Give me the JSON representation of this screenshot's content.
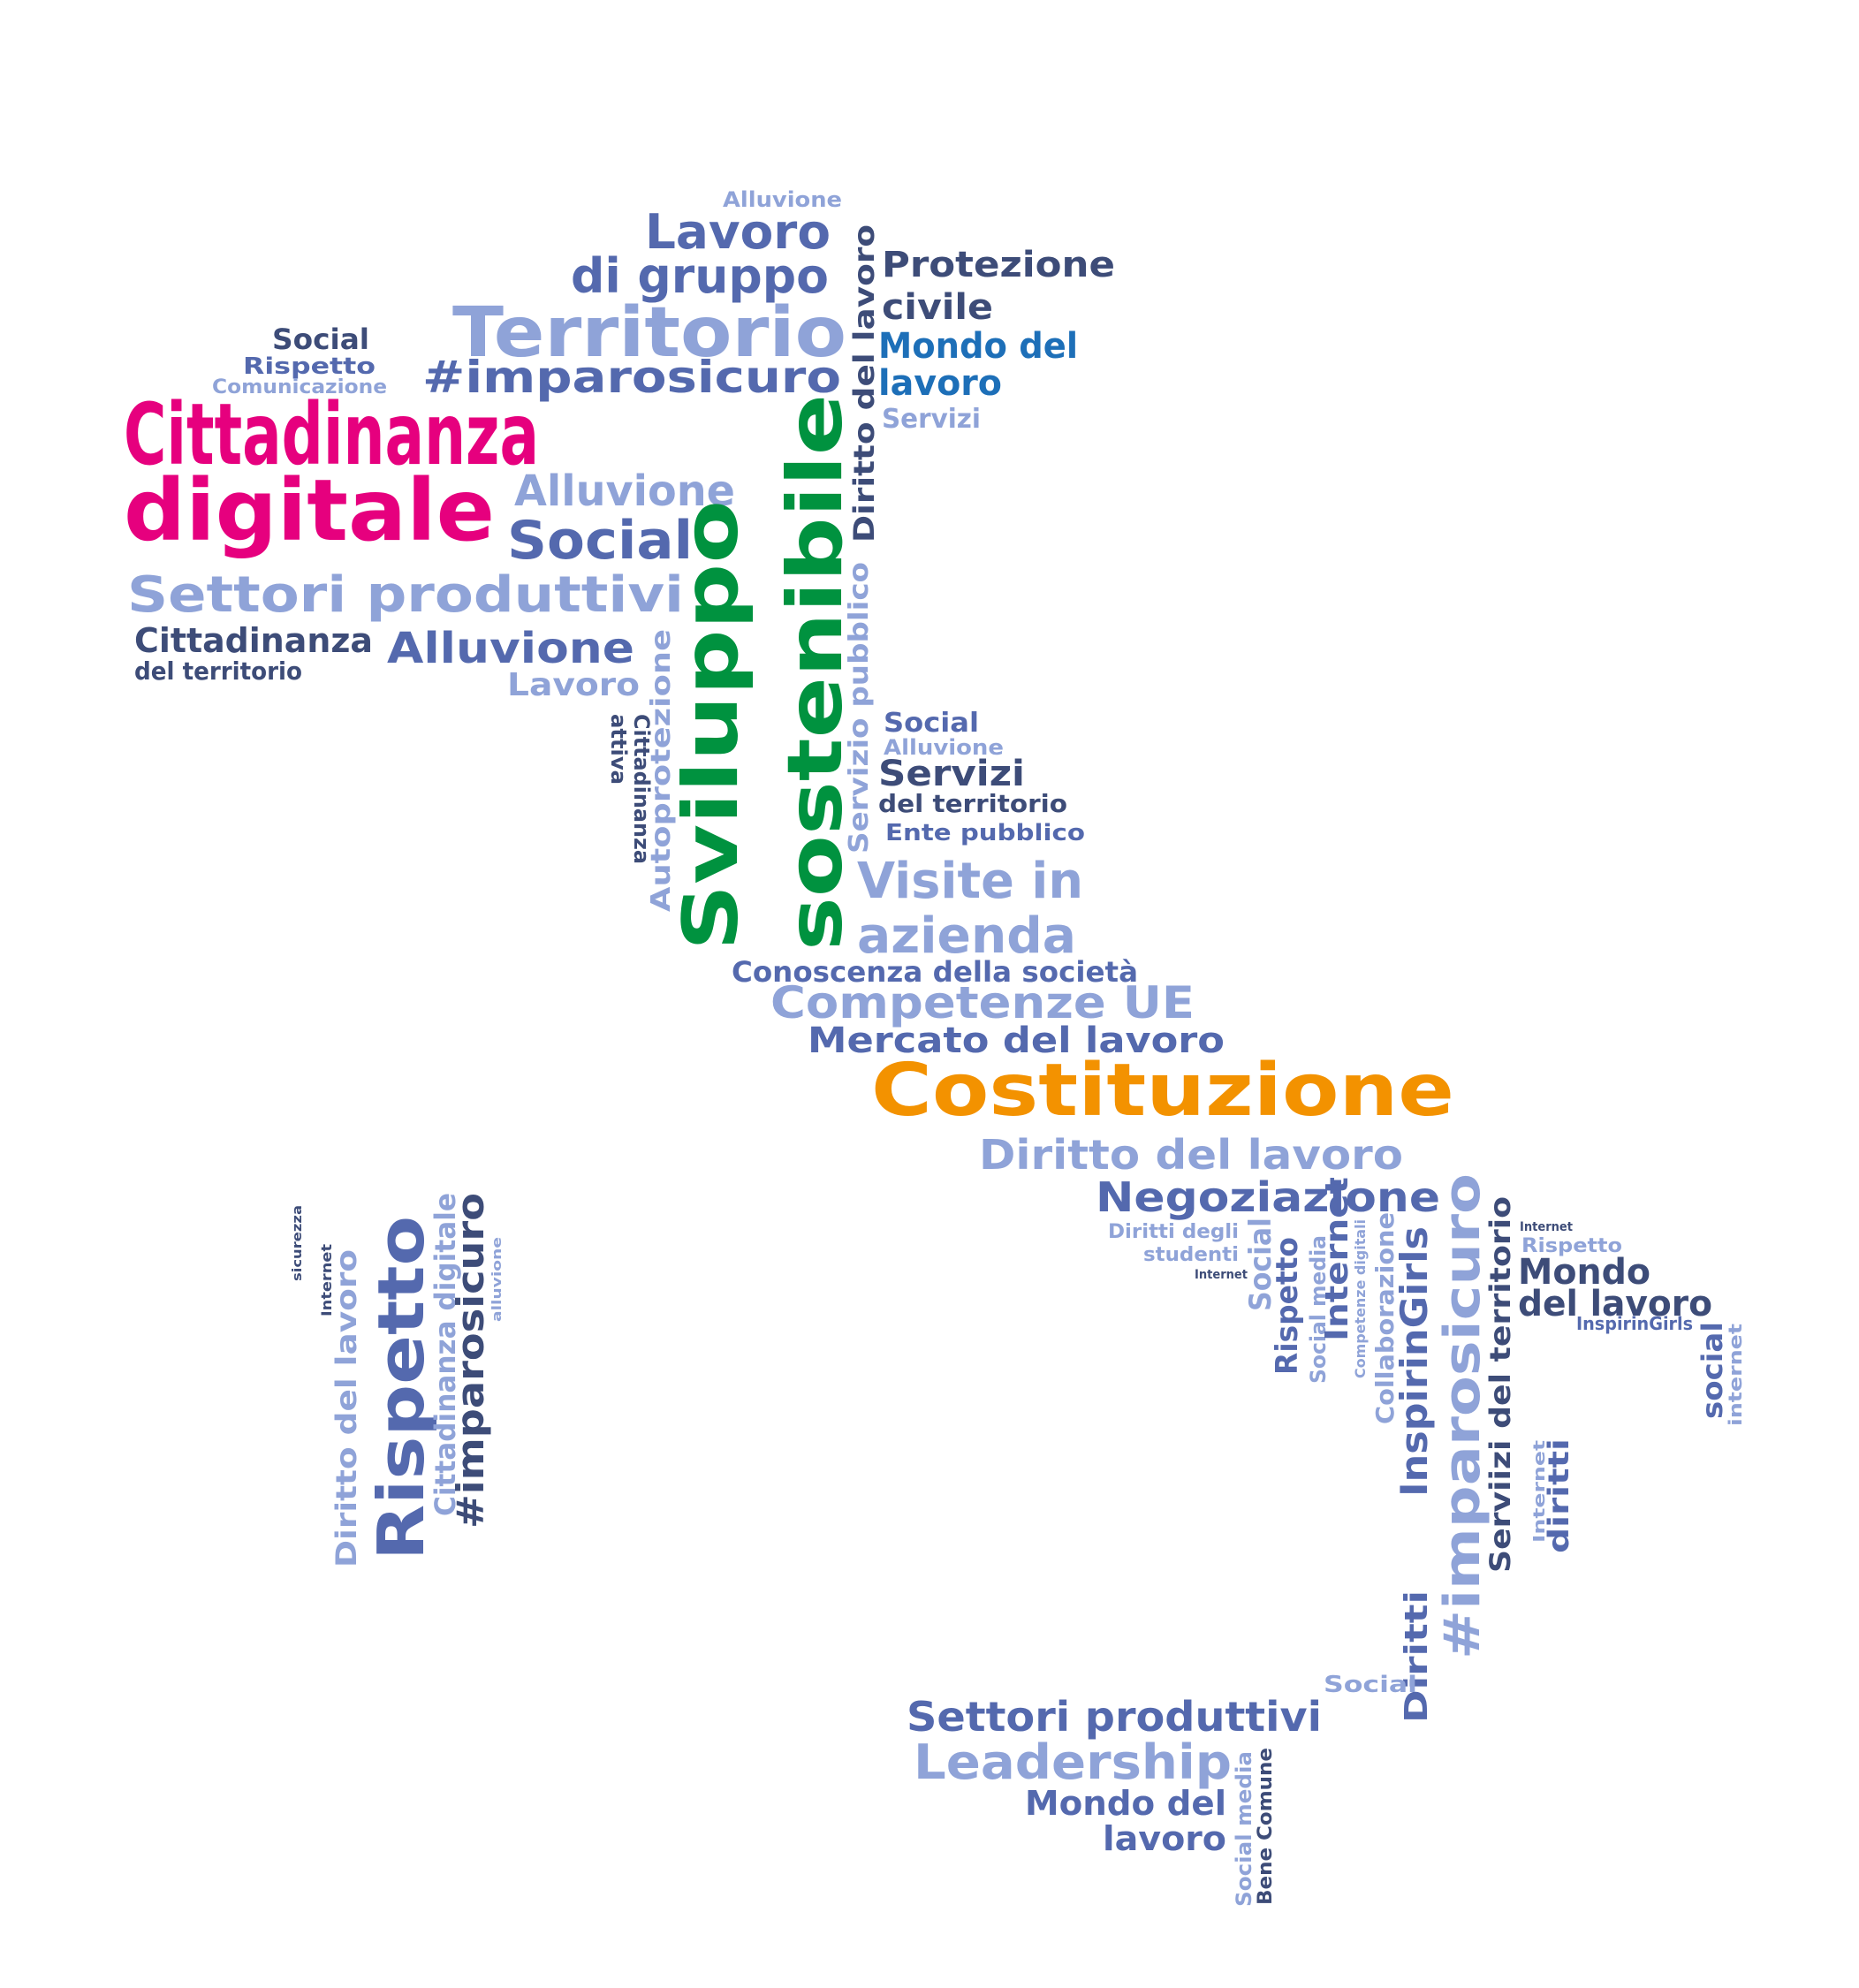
{
  "palette": {
    "magenta": "#E6007E",
    "green": "#00923F",
    "orange": "#F39200",
    "slate": "#3D4C78",
    "indigo": "#5469AE",
    "lavender": "#8FA3D8",
    "blue": "#1D6FB8"
  },
  "words": [
    {
      "text": "Alluvione",
      "color": "lavender",
      "rotate": 0
    },
    {
      "text": "Lavoro",
      "color": "indigo",
      "rotate": 0
    },
    {
      "text": "di gruppo",
      "color": "indigo",
      "rotate": 0
    },
    {
      "text": "Territorio",
      "color": "lavender",
      "rotate": 0
    },
    {
      "text": "#imparosicuro",
      "color": "indigo",
      "rotate": 0
    },
    {
      "text": "Social",
      "color": "slate",
      "rotate": 0
    },
    {
      "text": "Rispetto",
      "color": "indigo",
      "rotate": 0
    },
    {
      "text": "Comunicazione",
      "color": "lavender",
      "rotate": 0
    },
    {
      "text": "Cittadinanza",
      "color": "magenta",
      "rotate": 0
    },
    {
      "text": "digitale",
      "color": "magenta",
      "rotate": 0
    },
    {
      "text": "Alluvione",
      "color": "lavender",
      "rotate": 0
    },
    {
      "text": "Social",
      "color": "indigo",
      "rotate": 0
    },
    {
      "text": "Settori produttivi",
      "color": "lavender",
      "rotate": 0
    },
    {
      "text": "Cittadinanza",
      "color": "slate",
      "rotate": 0
    },
    {
      "text": "del territorio",
      "color": "slate",
      "rotate": 0
    },
    {
      "text": "Alluvione",
      "color": "indigo",
      "rotate": 0
    },
    {
      "text": "Lavoro",
      "color": "lavender",
      "rotate": 0
    },
    {
      "text": "Protezione",
      "color": "slate",
      "rotate": 0
    },
    {
      "text": "civile",
      "color": "slate",
      "rotate": 0
    },
    {
      "text": "Mondo del",
      "color": "blue",
      "rotate": 0
    },
    {
      "text": "lavoro",
      "color": "blue",
      "rotate": 0
    },
    {
      "text": "Servizi",
      "color": "lavender",
      "rotate": 0
    },
    {
      "text": "Diritto del lavoro",
      "color": "slate",
      "rotate": -90
    },
    {
      "text": "Sviluppo",
      "color": "green",
      "rotate": -90
    },
    {
      "text": "sostenibile",
      "color": "green",
      "rotate": -90
    },
    {
      "text": "Servizio pubblico",
      "color": "lavender",
      "rotate": -90
    },
    {
      "text": "Autoprotezione",
      "color": "lavender",
      "rotate": -90
    },
    {
      "text": "Cittadinanza",
      "color": "slate",
      "rotate": 90
    },
    {
      "text": "attiva",
      "color": "slate",
      "rotate": 90
    },
    {
      "text": "Social",
      "color": "indigo",
      "rotate": 0
    },
    {
      "text": "Alluvione",
      "color": "lavender",
      "rotate": 0
    },
    {
      "text": "Servizi",
      "color": "slate",
      "rotate": 0
    },
    {
      "text": "del territorio",
      "color": "slate",
      "rotate": 0
    },
    {
      "text": "Ente pubblico",
      "color": "indigo",
      "rotate": 0
    },
    {
      "text": "Visite in",
      "color": "lavender",
      "rotate": 0
    },
    {
      "text": "azienda",
      "color": "lavender",
      "rotate": 0
    },
    {
      "text": "Conoscenza della società",
      "color": "indigo",
      "rotate": 0
    },
    {
      "text": "Competenze UE",
      "color": "lavender",
      "rotate": 0
    },
    {
      "text": "Mercato del lavoro",
      "color": "indigo",
      "rotate": 0
    },
    {
      "text": "Costituzione",
      "color": "orange",
      "rotate": 0
    },
    {
      "text": "Diritto del lavoro",
      "color": "lavender",
      "rotate": 0
    },
    {
      "text": "Negoziazione",
      "color": "indigo",
      "rotate": 0
    },
    {
      "text": "Diritti degli",
      "color": "lavender",
      "rotate": 0
    },
    {
      "text": "studenti",
      "color": "lavender",
      "rotate": 0
    },
    {
      "text": "Internet",
      "color": "slate",
      "rotate": 0
    },
    {
      "text": "Social",
      "color": "lavender",
      "rotate": -90
    },
    {
      "text": "Rispetto",
      "color": "indigo",
      "rotate": -90
    },
    {
      "text": "Social media",
      "color": "lavender",
      "rotate": -90
    },
    {
      "text": "Internet",
      "color": "indigo",
      "rotate": -90
    },
    {
      "text": "Competenze digitali",
      "color": "lavender",
      "rotate": -90
    },
    {
      "text": "Collaborazione",
      "color": "lavender",
      "rotate": -90
    },
    {
      "text": "InspirinGirls",
      "color": "indigo",
      "rotate": -90
    },
    {
      "text": "#imparosicuro",
      "color": "lavender",
      "rotate": -90
    },
    {
      "text": "Diritti",
      "color": "indigo",
      "rotate": -90
    },
    {
      "text": "Serviizi del territorio",
      "color": "slate",
      "rotate": -90
    },
    {
      "text": "Internet",
      "color": "slate",
      "rotate": 0
    },
    {
      "text": "Rispetto",
      "color": "lavender",
      "rotate": 0
    },
    {
      "text": "Mondo",
      "color": "slate",
      "rotate": 0
    },
    {
      "text": "del lavoro",
      "color": "slate",
      "rotate": 0
    },
    {
      "text": "InspirinGirls",
      "color": "indigo",
      "rotate": 0
    },
    {
      "text": "social",
      "color": "indigo",
      "rotate": -90
    },
    {
      "text": "internet",
      "color": "lavender",
      "rotate": -90
    },
    {
      "text": "Internet",
      "color": "lavender",
      "rotate": -90
    },
    {
      "text": "diritti",
      "color": "indigo",
      "rotate": -90
    },
    {
      "text": "Social",
      "color": "lavender",
      "rotate": 0
    },
    {
      "text": "Settori produttivi",
      "color": "indigo",
      "rotate": 0
    },
    {
      "text": "Leadership",
      "color": "lavender",
      "rotate": 0
    },
    {
      "text": "Mondo del",
      "color": "indigo",
      "rotate": 0
    },
    {
      "text": "lavoro",
      "color": "indigo",
      "rotate": 0
    },
    {
      "text": "Social media",
      "color": "lavender",
      "rotate": -90
    },
    {
      "text": "Bene Comune",
      "color": "slate",
      "rotate": -90
    },
    {
      "text": "sicurezza",
      "color": "slate",
      "rotate": -90
    },
    {
      "text": "Internet",
      "color": "slate",
      "rotate": -90
    },
    {
      "text": "Diritto del lavoro",
      "color": "lavender",
      "rotate": -90
    },
    {
      "text": "Rispetto",
      "color": "indigo",
      "rotate": -90
    },
    {
      "text": "Cittadinanza digitale",
      "color": "lavender",
      "rotate": -90
    },
    {
      "text": "#imparosicuro",
      "color": "slate",
      "rotate": -90
    },
    {
      "text": "alluvione",
      "color": "lavender",
      "rotate": -90
    }
  ]
}
